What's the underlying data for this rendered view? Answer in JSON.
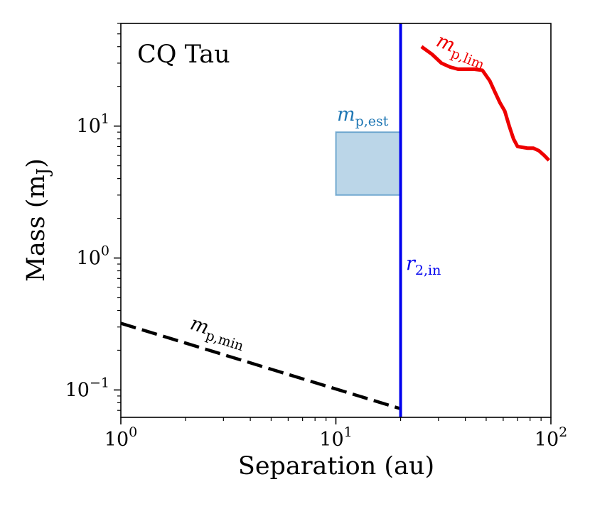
{
  "chart_data": {
    "type": "line",
    "title": "",
    "annotation_title": "CQ Tau",
    "xlabel": "Separation (au)",
    "ylabel": "Mass (m",
    "ylabel_sub": "J",
    "ylabel_close": ")",
    "x_scale": "log",
    "y_scale": "log",
    "xlim": [
      1,
      100
    ],
    "ylim": [
      0.062,
      60
    ],
    "x_ticks": [
      {
        "value": 1,
        "base": "10",
        "exp": "0"
      },
      {
        "value": 10,
        "base": "10",
        "exp": "1"
      },
      {
        "value": 100,
        "base": "10",
        "exp": "2"
      }
    ],
    "y_ticks": [
      {
        "value": 0.1,
        "base": "10",
        "exp": "−1"
      },
      {
        "value": 1,
        "base": "10",
        "exp": "0"
      },
      {
        "value": 10,
        "base": "10",
        "exp": "1"
      }
    ],
    "grid": false,
    "legend": "none",
    "series": [
      {
        "label_main": "m",
        "label_sub": "p,min",
        "color": "#000000",
        "style": "dashed",
        "x": [
          1,
          20
        ],
        "y": [
          0.32,
          0.072
        ]
      },
      {
        "label_main": "m",
        "label_sub": "p,lim",
        "color": "#ee0000",
        "style": "solid",
        "x": [
          25,
          28,
          31,
          34,
          37,
          40,
          44,
          48,
          52,
          55,
          58,
          61,
          64,
          67,
          70,
          74,
          78,
          83,
          88,
          93,
          98
        ],
        "y": [
          40,
          35,
          30,
          28,
          27,
          27,
          27,
          26.5,
          22,
          18,
          15,
          13,
          10,
          8,
          7,
          6.9,
          6.8,
          6.8,
          6.5,
          6,
          5.5
        ]
      }
    ],
    "vertical_line": {
      "label_main": "r",
      "label_sub": "2,in",
      "x": 20,
      "color": "#0000ee"
    },
    "region": {
      "label_main": "m",
      "label_sub": "p,est",
      "x": [
        10,
        20
      ],
      "y": [
        3,
        9
      ],
      "color": "#1f77b4"
    }
  }
}
